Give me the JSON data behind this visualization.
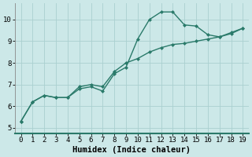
{
  "xlabel": "Humidex (Indice chaleur)",
  "x": [
    0,
    1,
    2,
    3,
    4,
    5,
    6,
    7,
    8,
    9,
    10,
    11,
    12,
    13,
    14,
    15,
    16,
    17,
    18,
    19
  ],
  "line1": [
    5.3,
    6.2,
    6.5,
    6.4,
    6.4,
    6.8,
    6.9,
    6.7,
    7.5,
    7.8,
    9.1,
    10.0,
    10.35,
    10.35,
    9.75,
    9.7,
    9.3,
    9.2,
    9.4,
    9.6
  ],
  "line2": [
    5.3,
    6.2,
    6.5,
    6.4,
    6.4,
    6.9,
    7.0,
    6.9,
    7.6,
    8.0,
    8.2,
    8.5,
    8.7,
    8.85,
    8.9,
    9.0,
    9.1,
    9.2,
    9.35,
    9.6
  ],
  "line_color": "#2a7a6a",
  "bg_color": "#cce8e8",
  "grid_color": "#aad0d0",
  "panel_bg": "#cce8e8",
  "xlim": [
    -0.5,
    19.5
  ],
  "ylim": [
    4.75,
    10.75
  ],
  "yticks": [
    5,
    6,
    7,
    8,
    9,
    10
  ],
  "xticks": [
    0,
    1,
    2,
    3,
    4,
    5,
    6,
    7,
    8,
    9,
    10,
    11,
    12,
    13,
    14,
    15,
    16,
    17,
    18,
    19
  ],
  "markersize": 2.0,
  "linewidth": 1.0,
  "xlabel_fontsize": 7.5,
  "tick_fontsize": 6.5
}
